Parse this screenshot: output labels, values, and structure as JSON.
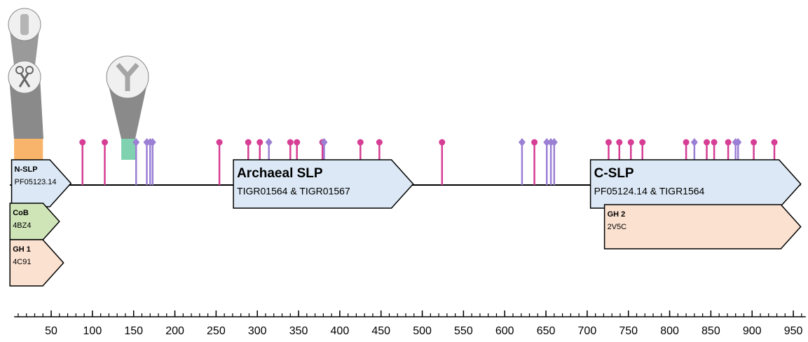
{
  "axis": {
    "lim": [
      0,
      965
    ],
    "ticks": [
      50,
      100,
      150,
      200,
      250,
      300,
      350,
      400,
      450,
      500,
      550,
      600,
      650,
      700,
      750,
      800,
      850,
      900,
      950
    ],
    "minor_tick_step": 10
  },
  "regions": [
    {
      "start": 5,
      "end": 40,
      "color": "#f9b46b"
    },
    {
      "start": 135,
      "end": 152,
      "color": "#7fd1b0"
    }
  ],
  "markers": [
    {
      "shape": "circle",
      "color": "#d63d94",
      "positions": [
        88,
        115,
        254,
        289,
        303,
        340,
        348,
        379,
        425,
        448,
        524,
        636,
        726,
        739,
        753,
        767,
        820,
        845,
        854,
        871,
        902,
        927
      ]
    },
    {
      "shape": "diamond",
      "color": "#9b7fd4",
      "positions": [
        153,
        166,
        170,
        173,
        314,
        381,
        621,
        651,
        656,
        660,
        830,
        880,
        883
      ]
    }
  ],
  "domains": [
    {
      "name": "N-SLP",
      "id": "PF05123.14",
      "start": 2,
      "end": 74,
      "color": "#dce8f5"
    },
    {
      "name": "Archaeal SLP",
      "id": "TIGR01564 & TIGR01567",
      "start": 271,
      "end": 489,
      "color": "#dce8f5"
    },
    {
      "name": "C-SLP",
      "id": "PF05124.14 & TIGR1564",
      "start": 704,
      "end": 959,
      "color": "#dce8f5"
    },
    {
      "name": "CoB",
      "id": "4BZ4",
      "start": 0,
      "end": 60,
      "color": "#cfe5b8"
    },
    {
      "name": "GH 1",
      "id": "4C91",
      "start": 0,
      "end": 65,
      "color": "#fbe1d0"
    },
    {
      "name": "GH 2",
      "id": "2V5C",
      "start": 721,
      "end": 959,
      "color": "#fbe1d0"
    }
  ]
}
